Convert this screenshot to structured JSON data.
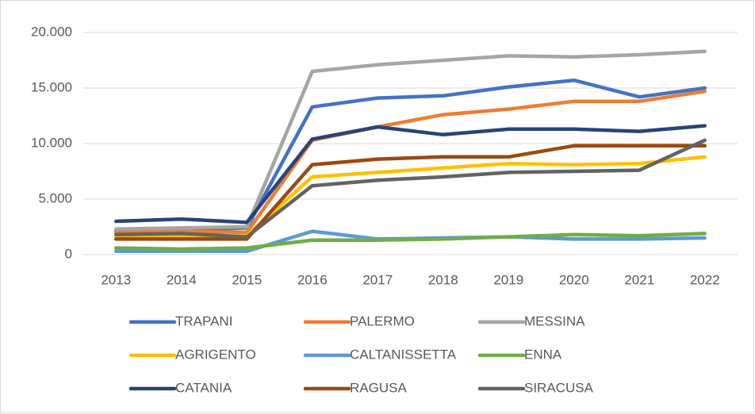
{
  "chart_data": {
    "type": "line",
    "categories": [
      "2013",
      "2014",
      "2015",
      "2016",
      "2017",
      "2018",
      "2019",
      "2020",
      "2021",
      "2022"
    ],
    "series": [
      {
        "name": "TRAPANI",
        "color": "#4472c4",
        "values": [
          2100,
          2200,
          2400,
          13300,
          14100,
          14300,
          15100,
          15700,
          14200,
          15000
        ]
      },
      {
        "name": "PALERMO",
        "color": "#ed7d31",
        "values": [
          2000,
          2100,
          2000,
          10300,
          11500,
          12600,
          13100,
          13800,
          13800,
          14700
        ]
      },
      {
        "name": "MESSINA",
        "color": "#a5a5a5",
        "values": [
          2300,
          2400,
          2500,
          16500,
          17100,
          17500,
          17900,
          17800,
          18000,
          18300
        ]
      },
      {
        "name": "AGRIGENTO",
        "color": "#ffc000",
        "values": [
          1500,
          1600,
          1700,
          7000,
          7400,
          7800,
          8200,
          8100,
          8200,
          8800
        ]
      },
      {
        "name": "CALTANISSETTA",
        "color": "#5b9bd5",
        "values": [
          300,
          300,
          300,
          2100,
          1400,
          1500,
          1600,
          1400,
          1400,
          1500
        ]
      },
      {
        "name": "ENNA",
        "color": "#70ad47",
        "values": [
          600,
          500,
          600,
          1300,
          1300,
          1400,
          1600,
          1800,
          1700,
          1900
        ]
      },
      {
        "name": "CATANIA",
        "color": "#264478",
        "values": [
          3000,
          3200,
          2900,
          10400,
          11500,
          10800,
          11300,
          11300,
          11100,
          11600
        ]
      },
      {
        "name": "RAGUSA",
        "color": "#9e480e",
        "values": [
          1400,
          1400,
          1400,
          8100,
          8600,
          8800,
          8800,
          9800,
          9800,
          9800
        ]
      },
      {
        "name": "SIRACUSA",
        "color": "#636363",
        "values": [
          1800,
          1900,
          1600,
          6200,
          6700,
          7000,
          7400,
          7500,
          7600,
          10300
        ]
      }
    ],
    "ylim": [
      0,
      20000
    ],
    "yticks": [
      0,
      {
        "value": 5000,
        "label": "5.000"
      },
      {
        "value": 10000,
        "label": "10.000"
      },
      {
        "value": 15000,
        "label": "15.000"
      },
      {
        "value": 20000,
        "label": "20.000"
      }
    ],
    "grid": true,
    "legend": "bottom"
  }
}
